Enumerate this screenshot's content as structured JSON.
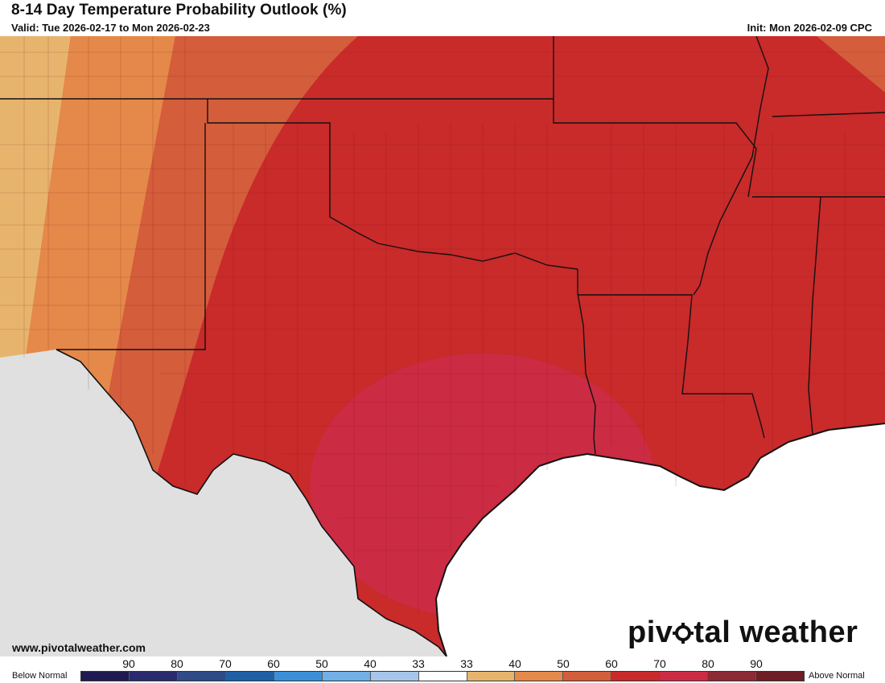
{
  "header": {
    "title": "8-14 Day Temperature Probability Outlook (%)",
    "valid": "Valid: Tue 2026-02-17 to Mon 2026-02-23",
    "init": "Init: Mon 2026-02-09 CPC"
  },
  "footer": {
    "url": "www.pivotalweather.com",
    "brand_before": "piv",
    "brand_after": "tal weather"
  },
  "colors": {
    "land_outside": "#e0e0e0",
    "ocean": "#ffffff",
    "p33_40": "#e7b46e",
    "p40_50": "#e5894a",
    "p50_60": "#d45d3b",
    "p60_70": "#c92a2a",
    "p70_80": "#cc2b44",
    "p80_90": "#8c2a35",
    "p90_100": "#6e1e26"
  },
  "legend": {
    "below_label": "Below Normal",
    "above_label": "Above Normal",
    "tick_labels": [
      "90",
      "80",
      "70",
      "60",
      "50",
      "40",
      "33",
      "33",
      "40",
      "50",
      "60",
      "70",
      "80",
      "90"
    ],
    "swatches": [
      "#1f1a4f",
      "#2a2a6e",
      "#2f4a88",
      "#1f5fa6",
      "#3a8fd8",
      "#71b0e6",
      "#a5c6e8",
      "#ffffff",
      "#e7b46e",
      "#e5894a",
      "#d45d3b",
      "#c92a2a",
      "#cc2b44",
      "#8c2a35",
      "#6e1e26"
    ]
  }
}
